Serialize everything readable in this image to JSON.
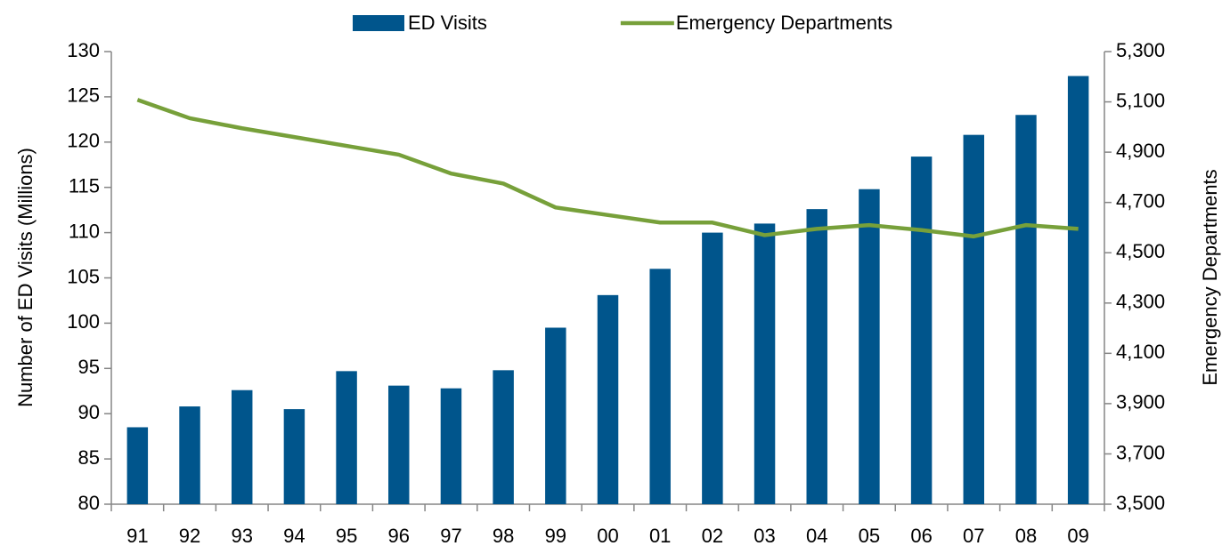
{
  "chart_data": {
    "type": "bar",
    "y_label": "Number of ED Visits (Millions)",
    "y2_label": "Emergency Departments",
    "categories": [
      "91",
      "92",
      "93",
      "94",
      "95",
      "96",
      "97",
      "98",
      "99",
      "00",
      "01",
      "02",
      "03",
      "04",
      "05",
      "06",
      "07",
      "08",
      "09"
    ],
    "series": [
      {
        "name": "ED Visits",
        "type": "bar",
        "color": "#00558c",
        "values": [
          88.5,
          90.8,
          92.6,
          90.5,
          94.7,
          93.1,
          92.8,
          94.8,
          99.5,
          103.1,
          106.0,
          110.0,
          111.0,
          112.6,
          114.8,
          118.4,
          120.8,
          123.0,
          127.3
        ]
      },
      {
        "name": "Emergency Departments",
        "type": "line",
        "axis": "y2",
        "color": "#77a03a",
        "values": [
          5108,
          5035,
          4995,
          4960,
          4925,
          4890,
          4815,
          4775,
          4680,
          4650,
          4620,
          4620,
          4570,
          4595,
          4610,
          4590,
          4565,
          4610,
          4595
        ]
      }
    ],
    "ylim": [
      80,
      130
    ],
    "yticks": [
      80,
      85,
      90,
      95,
      100,
      105,
      110,
      115,
      120,
      125,
      130
    ],
    "y2lim": [
      3500,
      5300
    ],
    "y2ticks": [
      {
        "value": 3500,
        "label": "3,500"
      },
      {
        "value": 3700,
        "label": "3,700"
      },
      {
        "value": 3900,
        "label": "3,900"
      },
      {
        "value": 4100,
        "label": "4,100"
      },
      {
        "value": 4300,
        "label": "4,300"
      },
      {
        "value": 4500,
        "label": "4,500"
      },
      {
        "value": 4700,
        "label": "4,700"
      },
      {
        "value": 4900,
        "label": "4,900"
      },
      {
        "value": 5100,
        "label": "5,100"
      },
      {
        "value": 5300,
        "label": "5,300"
      }
    ],
    "legend": "top",
    "grid": false
  }
}
